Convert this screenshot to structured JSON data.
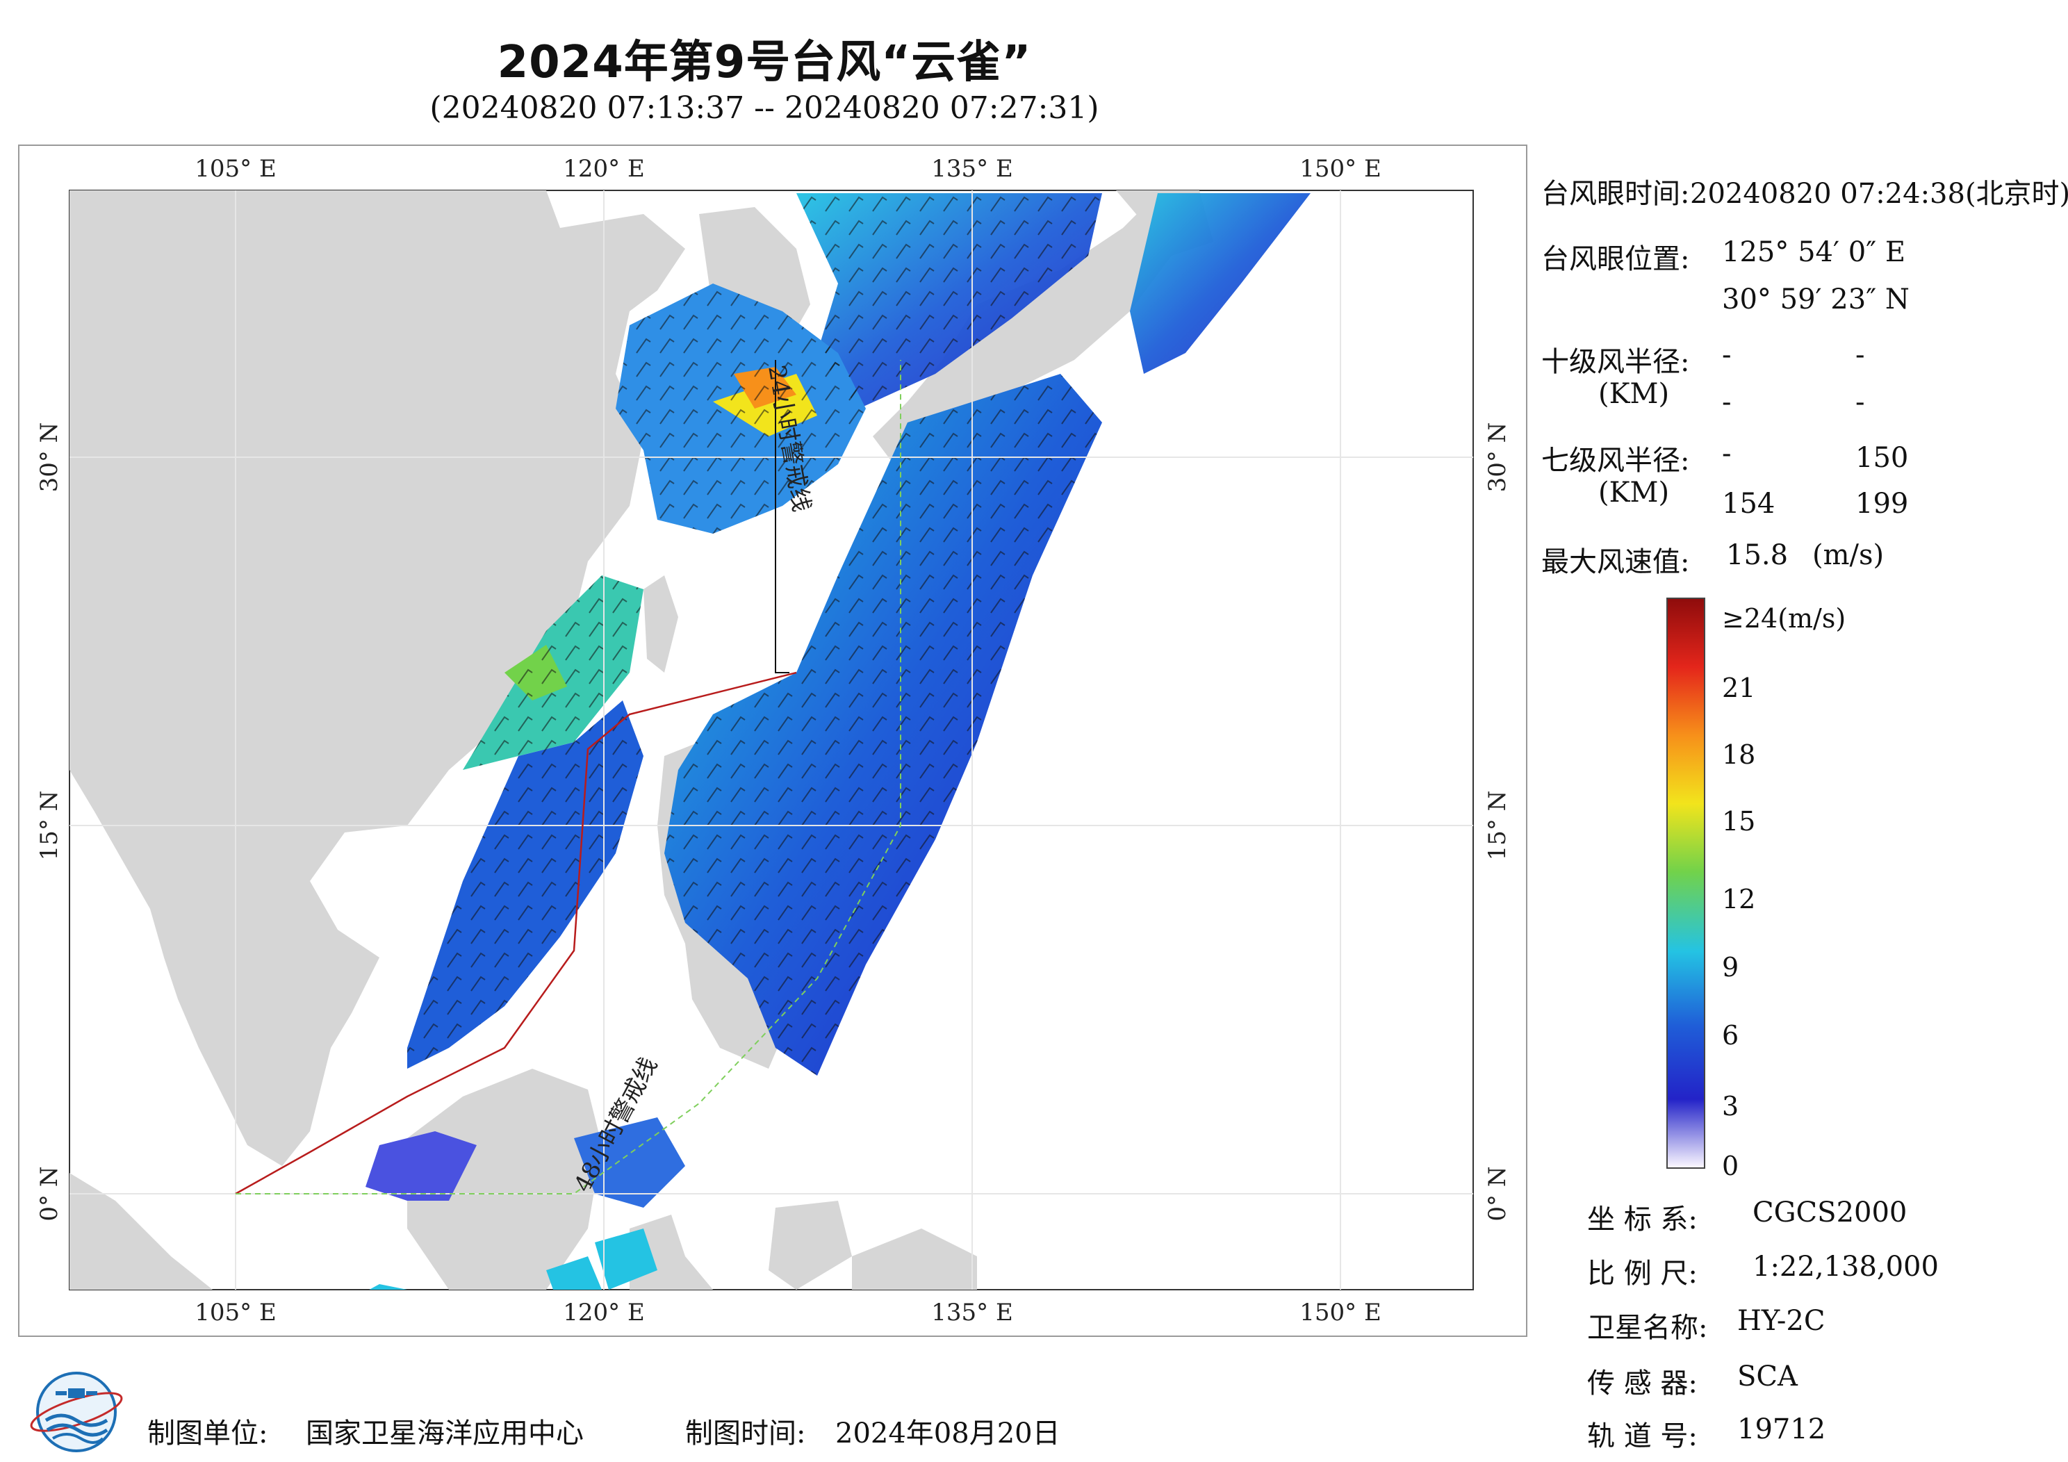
{
  "header": {
    "title": "2024年第9号台风“云雀”",
    "subtitle": "(20240820 07:13:37 -- 20240820 07:27:31)"
  },
  "map": {
    "lon_labels": [
      "105° E",
      "120° E",
      "135° E",
      "150° E"
    ],
    "lat_labels": [
      "30° N",
      "15° N",
      "0° N"
    ],
    "colors": {
      "land": "#d6d6d6",
      "sea": "#ffffff",
      "track": "#b81c1c",
      "boundary": "#7fcf5c"
    },
    "track_labels": [
      "24小时警戒线",
      "48小时警戒线"
    ]
  },
  "info": {
    "eye_time_label": "台风眼时间:",
    "eye_time_value": "20240820 07:24:38(北京时)",
    "eye_pos_label": "台风眼位置:",
    "eye_lon": "125° 54′ 0″ E",
    "eye_lat": "30° 59′ 23″ N",
    "r10_label": "十级风半径:",
    "r10_unit": "(KM)",
    "r10_values": [
      "-",
      "-",
      "-",
      "-"
    ],
    "r7_label": "七级风半径:",
    "r7_unit": "(KM)",
    "r7_values": [
      "-",
      "150",
      "154",
      "199"
    ],
    "maxwind_label": "最大风速值:",
    "maxwind_value": "15.8",
    "maxwind_unit": "(m/s)"
  },
  "colorbar": {
    "ticks": [
      "≥24(m/s)",
      "21",
      "18",
      "15",
      "12",
      "9",
      "6",
      "3",
      "0"
    ],
    "colors": [
      "#fbf7ff",
      "#2323c8",
      "#1f5ed8",
      "#24c3e3",
      "#72d24a",
      "#f2e41c",
      "#f7901a",
      "#e4261b",
      "#8f0c0c"
    ]
  },
  "meta": {
    "crs_label": "坐 标 系:",
    "crs_value": "CGCS2000",
    "scale_label": "比 例 尺:",
    "scale_value": "1:22,138,000",
    "satellite_label": "卫星名称:",
    "satellite_value": "HY-2C",
    "sensor_label": "传 感 器:",
    "sensor_value": "SCA",
    "orbit_label": "轨 道 号:",
    "orbit_value": "19712"
  },
  "footer": {
    "producer_label": "制图单位:",
    "producer_value": "国家卫星海洋应用中心",
    "date_label": "制图时间:",
    "date_value": "2024年08月20日"
  }
}
